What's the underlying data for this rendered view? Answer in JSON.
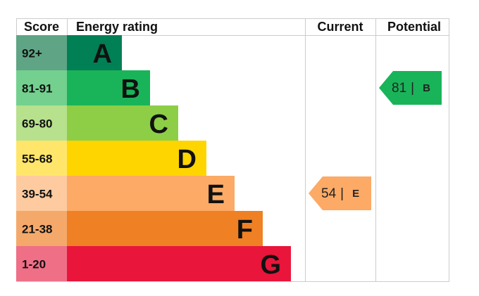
{
  "headers": {
    "score": "Score",
    "rating": "Energy rating",
    "current": "Current",
    "potential": "Potential"
  },
  "bands": [
    {
      "score": "92+",
      "letter": "A",
      "color": "#008054",
      "light": "#5fa585"
    },
    {
      "score": "81-91",
      "letter": "B",
      "color": "#19b459",
      "light": "#73d08f"
    },
    {
      "score": "69-80",
      "letter": "C",
      "color": "#8dce46",
      "light": "#b7e18d"
    },
    {
      "score": "55-68",
      "letter": "D",
      "color": "#ffd500",
      "light": "#ffe66b"
    },
    {
      "score": "39-54",
      "letter": "E",
      "color": "#fcaa65",
      "light": "#fdcb9f"
    },
    {
      "score": "21-38",
      "letter": "F",
      "color": "#ef8023",
      "light": "#f4a96b"
    },
    {
      "score": "1-20",
      "letter": "G",
      "color": "#e9153b",
      "light": "#ef6f87"
    }
  ],
  "current": {
    "score": 54,
    "rating": "E"
  },
  "potential": {
    "score": 81,
    "rating": "B"
  }
}
